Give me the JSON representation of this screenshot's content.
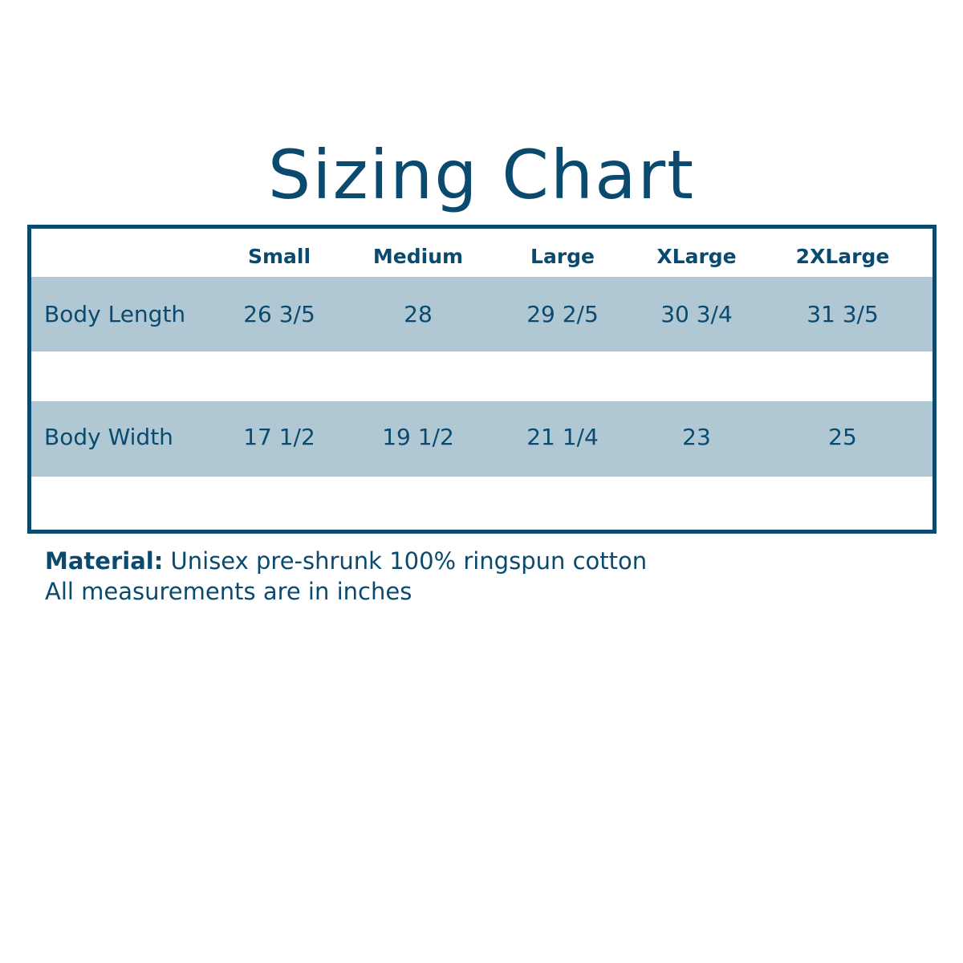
{
  "title": "Sizing Chart",
  "table": {
    "columns": [
      "Small",
      "Medium",
      "Large",
      "XLarge",
      "2XLarge"
    ],
    "rows": [
      {
        "label": "Body Length",
        "values": [
          "26 3/5",
          "28",
          "29 2/5",
          "30 3/4",
          "31 3/5"
        ]
      },
      {
        "label": "Body Width",
        "values": [
          "17 1/2",
          "19 1/2",
          "21 1/4",
          "23",
          "25"
        ]
      }
    ]
  },
  "notes": {
    "material_label": "Material:",
    "material_text": " Unisex pre-shrunk 100% ringspun cotton",
    "units": "All measurements are in inches"
  },
  "colors": {
    "primary": "#0b4a6f",
    "row_band": "#b0c8d4"
  }
}
